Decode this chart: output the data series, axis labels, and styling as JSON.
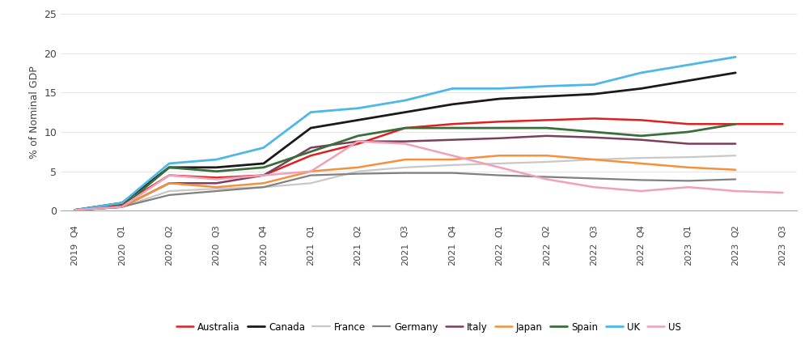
{
  "x_labels": [
    "2019 Q4",
    "2020 Q1",
    "2020 Q2",
    "2020 Q3",
    "2020 Q4",
    "2021 Q1",
    "2021 Q2",
    "2021 Q3",
    "2021 Q4",
    "2022 Q1",
    "2022 Q2",
    "2022 Q3",
    "2022 Q4",
    "2023 Q1",
    "2023 Q2",
    "2023 Q3"
  ],
  "series": {
    "Australia": [
      0.1,
      0.8,
      4.5,
      4.2,
      4.5,
      7.0,
      8.5,
      10.5,
      11.0,
      11.3,
      11.5,
      11.7,
      11.5,
      11.0,
      11.0,
      11.0
    ],
    "Canada": [
      0.1,
      1.0,
      5.5,
      5.5,
      6.0,
      10.5,
      11.5,
      12.5,
      13.5,
      14.2,
      14.5,
      14.8,
      15.5,
      16.5,
      17.5,
      null
    ],
    "France": [
      0.1,
      0.5,
      2.5,
      2.8,
      3.0,
      3.5,
      5.0,
      5.5,
      5.8,
      6.0,
      6.2,
      6.5,
      6.7,
      6.8,
      7.0,
      null
    ],
    "Germany": [
      0.1,
      0.5,
      2.0,
      2.5,
      3.0,
      4.5,
      4.7,
      4.8,
      4.8,
      4.5,
      4.3,
      4.1,
      3.9,
      3.8,
      4.0,
      null
    ],
    "Italy": [
      0.1,
      0.5,
      3.5,
      3.5,
      4.5,
      8.0,
      8.8,
      8.8,
      9.0,
      9.2,
      9.5,
      9.3,
      9.0,
      8.5,
      8.5,
      null
    ],
    "Japan": [
      0.1,
      0.5,
      3.5,
      3.0,
      3.5,
      5.0,
      5.5,
      6.5,
      6.5,
      7.0,
      7.0,
      6.5,
      6.0,
      5.5,
      5.2,
      null
    ],
    "Spain": [
      0.1,
      0.5,
      5.5,
      5.0,
      5.5,
      7.5,
      9.5,
      10.5,
      10.5,
      10.5,
      10.5,
      10.0,
      9.5,
      10.0,
      11.0,
      null
    ],
    "UK": [
      0.1,
      1.0,
      6.0,
      6.5,
      8.0,
      12.5,
      13.0,
      14.0,
      15.5,
      15.5,
      15.8,
      16.0,
      17.5,
      18.5,
      19.5,
      null
    ],
    "US": [
      0.1,
      0.5,
      4.5,
      4.0,
      4.5,
      5.0,
      8.8,
      8.5,
      7.0,
      5.5,
      4.0,
      3.0,
      2.5,
      3.0,
      2.5,
      2.3
    ]
  },
  "colors": {
    "Australia": "#e02020",
    "Canada": "#1a1a1a",
    "France": "#c8c8c8",
    "Germany": "#808080",
    "Italy": "#7b3f5e",
    "Japan": "#f5903c",
    "Spain": "#3a6e3a",
    "UK": "#4db8e8",
    "US": "#f0a0b8"
  },
  "linewidths": {
    "Australia": 1.8,
    "Canada": 2.0,
    "France": 1.6,
    "Germany": 1.6,
    "Italy": 1.8,
    "Japan": 1.8,
    "Spain": 2.0,
    "UK": 2.0,
    "US": 1.8
  },
  "ylabel": "% of Nominal GDP",
  "ylim": [
    0,
    25
  ],
  "yticks": [
    0,
    5,
    10,
    15,
    20,
    25
  ],
  "bg_color": "#ffffff"
}
